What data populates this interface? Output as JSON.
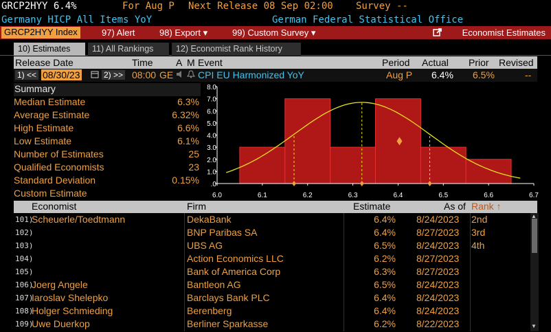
{
  "header": {
    "ticker_value": "GRCP2HYY 6.4%",
    "for_label": "For Aug P",
    "next_release": "Next Release 08 Sep 02:00",
    "survey": "Survey --",
    "name": "Germany HICP All Items YoY",
    "source": "German Federal Statistical Office"
  },
  "toolbar": {
    "ticker_index": "GRCP2HYY Index",
    "alert": "97) Alert",
    "export": "98) Export ▾",
    "custom_survey": "99) Custom Survey ▾",
    "economist_estimates": "Economist Estimates"
  },
  "tabs": [
    {
      "label": "10) Estimates"
    },
    {
      "label": "11) All Rankings"
    },
    {
      "label": "12) Economist Rank History"
    }
  ],
  "release_header": {
    "release_date": "Release Date",
    "time": "Time",
    "a": "A",
    "m": "M",
    "event": "Event",
    "period": "Period",
    "actual": "Actual",
    "prior": "Prior",
    "revised": "Revised"
  },
  "release_row": {
    "prev": "1) <<",
    "date": "08/30/23",
    "next": "2) >>",
    "time": "08:00",
    "country": "GE",
    "event": "CPI EU Harmonized YoY",
    "period": "Aug P",
    "actual": "6.4%",
    "prior": "6.5%",
    "revised": "--"
  },
  "summary": {
    "title": "Summary",
    "rows": [
      {
        "label": "Median Estimate",
        "value": "6.3%"
      },
      {
        "label": "Average Estimate",
        "value": "6.32%"
      },
      {
        "label": "High Estimate",
        "value": "6.6%"
      },
      {
        "label": "Low Estimate",
        "value": "6.1%"
      },
      {
        "label": "Number of Estimates",
        "value": "25"
      },
      {
        "label": "Qualified Economists",
        "value": "23"
      },
      {
        "label": "Standard Deviation",
        "value": "0.15%"
      },
      {
        "label": "Custom Estimate",
        "value": ""
      }
    ]
  },
  "chart_data": {
    "type": "bar",
    "x_ticks": [
      "6.0",
      "6.1",
      "6.2",
      "6.3",
      "6.4",
      "6.5",
      "6.6",
      "6.7"
    ],
    "y_ticks": [
      ".0",
      "1.0",
      "2.0",
      "3.0",
      "4.0",
      "5.0",
      "6.0",
      "7.0",
      "8.0"
    ],
    "xlim": [
      6.0,
      6.7
    ],
    "ylim": [
      0,
      8
    ],
    "bins": [
      {
        "from": 6.05,
        "to": 6.15,
        "count": 3
      },
      {
        "from": 6.15,
        "to": 6.25,
        "count": 7
      },
      {
        "from": 6.25,
        "to": 6.35,
        "count": 3
      },
      {
        "from": 6.35,
        "to": 6.45,
        "count": 7
      },
      {
        "from": 6.45,
        "to": 6.55,
        "count": 3
      },
      {
        "from": 6.55,
        "to": 6.65,
        "count": 2
      }
    ],
    "marker_actual": 6.4,
    "markers_axis": [
      6.17,
      6.32,
      6.47
    ],
    "curve_mean": 6.32,
    "curve_sd": 0.15,
    "curve_peak": 6.7,
    "colors": {
      "bar": "#b01818",
      "bar_edge": "#e03030",
      "curve": "#e8e020",
      "marker": "#f0a040",
      "axis": "#ffffff"
    }
  },
  "table": {
    "headers": {
      "economist": "Economist",
      "firm": "Firm",
      "estimate": "Estimate",
      "as_of": "As of",
      "rank": "Rank ↑"
    },
    "rows": [
      {
        "num": "101)",
        "economist": "Scheuerle/Toedtmann",
        "firm": "DekaBank",
        "estimate": "6.4%",
        "as_of": "8/24/2023",
        "rank": "2nd"
      },
      {
        "num": "102)",
        "economist": "",
        "firm": "BNP Paribas SA",
        "estimate": "6.4%",
        "as_of": "8/27/2023",
        "rank": "3rd"
      },
      {
        "num": "103)",
        "economist": "",
        "firm": "UBS AG",
        "estimate": "6.5%",
        "as_of": "8/24/2023",
        "rank": "4th"
      },
      {
        "num": "104)",
        "economist": "",
        "firm": "Action Economics LLC",
        "estimate": "6.2%",
        "as_of": "8/27/2023",
        "rank": ""
      },
      {
        "num": "105)",
        "economist": "",
        "firm": "Bank of America Corp",
        "estimate": "6.3%",
        "as_of": "8/27/2023",
        "rank": ""
      },
      {
        "num": "106)",
        "economist": "Joerg Angele",
        "firm": "Bantleon AG",
        "estimate": "6.5%",
        "as_of": "8/24/2023",
        "rank": ""
      },
      {
        "num": "107)",
        "economist": "Iaroslav Shelepko",
        "firm": "Barclays Bank PLC",
        "estimate": "6.4%",
        "as_of": "8/24/2023",
        "rank": ""
      },
      {
        "num": "108)",
        "economist": "Holger Schmieding",
        "firm": "Berenberg",
        "estimate": "6.4%",
        "as_of": "8/24/2023",
        "rank": ""
      },
      {
        "num": "109)",
        "economist": "Uwe Duerkop",
        "firm": "Berliner Sparkasse",
        "estimate": "6.2%",
        "as_of": "8/22/2023",
        "rank": ""
      }
    ]
  }
}
